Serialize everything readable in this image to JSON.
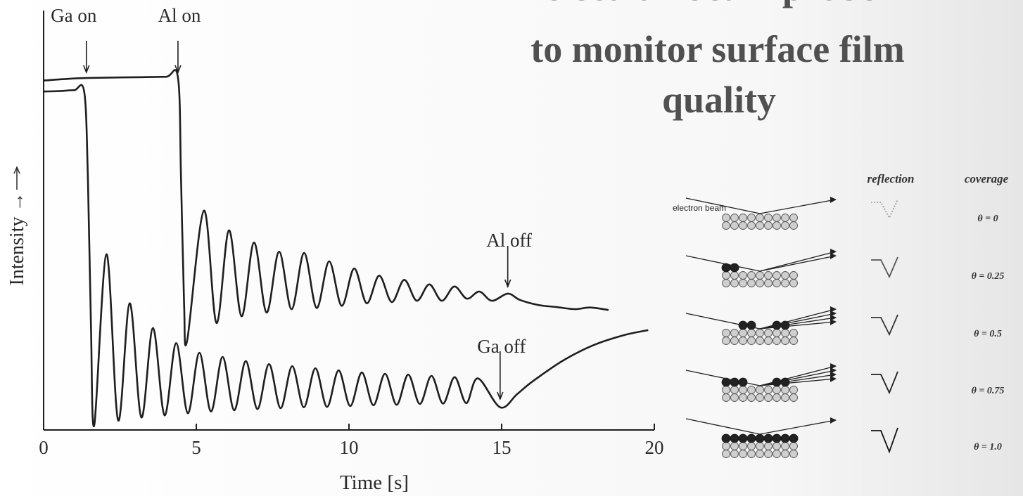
{
  "slide": {
    "title_lines": [
      "electron beam probe",
      "to monitor surface film",
      "quality"
    ]
  },
  "chart_data": {
    "type": "line",
    "xlabel": "Time [s]",
    "ylabel": "Intensity →",
    "xlim": [
      0,
      20
    ],
    "xticks": [
      0,
      5,
      10,
      15,
      20
    ],
    "ylim": [
      0,
      100
    ],
    "color": "#1e1e1e",
    "annotations": [
      {
        "text": "Ga on",
        "x": 1.4
      },
      {
        "text": "Al on",
        "x": 4.4
      },
      {
        "text": "Al off",
        "x": 15.2
      },
      {
        "text": "Ga off",
        "x": 14.95
      }
    ],
    "series": [
      {
        "color": "#1e1e1e",
        "x": [
          0,
          0.5,
          1.0,
          1.33,
          1.45,
          1.55,
          1.66,
          2.06,
          2.44,
          2.82,
          3.2,
          3.58,
          3.96,
          4.34,
          4.72,
          5.1,
          5.48,
          5.86,
          6.24,
          6.62,
          7.0,
          7.38,
          7.76,
          8.14,
          8.52,
          8.9,
          9.28,
          9.66,
          10.04,
          10.42,
          10.8,
          11.18,
          11.56,
          11.94,
          12.32,
          12.7,
          13.08,
          13.46,
          13.84,
          14.22,
          14.95,
          15.5,
          16,
          17,
          18,
          19,
          19.8
        ],
        "values": [
          80.7,
          80.8,
          81.0,
          80.6,
          60,
          25,
          1.2,
          41.9,
          2.3,
          30.2,
          3.0,
          24.3,
          3.5,
          20.7,
          4.0,
          18.4,
          4.4,
          17.4,
          4.7,
          16.4,
          5.0,
          15.7,
          5.2,
          15.2,
          5.4,
          14.7,
          5.5,
          14.2,
          5.7,
          13.7,
          5.9,
          13.4,
          6.0,
          13.2,
          6.2,
          12.9,
          6.3,
          12.6,
          6.4,
          12.3,
          5.4,
          8.5,
          11.5,
          16.5,
          20.2,
          22.6,
          23.8
        ]
      },
      {
        "color": "#1e1e1e",
        "x": [
          0,
          1.0,
          2.0,
          3.0,
          4.0,
          4.4,
          4.5,
          4.6,
          4.7,
          5.25,
          5.66,
          6.07,
          6.48,
          6.89,
          7.3,
          7.71,
          8.12,
          8.53,
          8.94,
          9.35,
          9.76,
          10.17,
          10.58,
          10.99,
          11.4,
          11.81,
          12.22,
          12.63,
          13.04,
          13.45,
          13.86,
          14.27,
          14.68,
          15.2,
          15.6,
          16.2,
          16.8,
          17.4,
          17.9,
          18.5
        ],
        "values": [
          83.3,
          83.8,
          84.0,
          84.1,
          84.2,
          84.0,
          60,
          30,
          21.3,
          52.3,
          25.5,
          47.6,
          27.1,
          44.7,
          28.0,
          42.5,
          28.8,
          42.2,
          29.1,
          40.2,
          29.6,
          38.5,
          30.2,
          36.8,
          30.5,
          35.8,
          30.8,
          34.7,
          30.8,
          34.2,
          31.3,
          33.0,
          30.8,
          32.5,
          31.0,
          29.8,
          29.3,
          28.8,
          29.2,
          28.6
        ]
      }
    ]
  },
  "diagram": {
    "beam_label": "electron beam",
    "reflection_header": "reflection",
    "coverage_header": "coverage",
    "coverages": [
      "θ = 0",
      "θ = 0.25",
      "θ = 0.5",
      "θ = 0.75",
      "θ = 1.0"
    ]
  }
}
